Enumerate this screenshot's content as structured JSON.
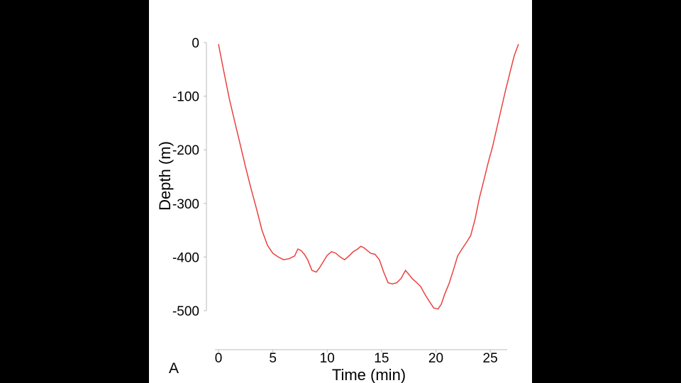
{
  "chart_data": {
    "type": "line",
    "title": "",
    "panel_label": "A",
    "xlabel": "Time (min)",
    "ylabel": "Depth (m)",
    "xlim": [
      0,
      27.8
    ],
    "ylim": [
      -500,
      0
    ],
    "xticks": [
      0,
      5,
      10,
      15,
      20,
      25
    ],
    "yticks": [
      0,
      -100,
      -200,
      -300,
      -400,
      -500
    ],
    "grid": false,
    "legend": "none",
    "line_color": "#e8423f",
    "series": [
      {
        "name": "",
        "x": [
          0,
          0.5,
          1,
          1.5,
          2,
          2.5,
          3,
          3.5,
          4,
          4.5,
          5,
          5.5,
          6,
          6.5,
          7,
          7.3,
          7.6,
          7.9,
          8.2,
          8.6,
          9,
          9.3,
          9.6,
          10,
          10.4,
          10.8,
          11.2,
          11.6,
          12,
          12.4,
          12.8,
          13.1,
          13.4,
          13.7,
          14,
          14.4,
          14.8,
          15.2,
          15.6,
          16,
          16.4,
          16.8,
          17.2,
          17.5,
          17.8,
          18.2,
          18.6,
          19,
          19.4,
          19.8,
          20.2,
          20.5,
          20.8,
          21.2,
          21.6,
          22,
          22.4,
          22.8,
          23.2,
          23.6,
          24,
          24.4,
          24.8,
          25.2,
          25.6,
          26,
          26.4,
          26.8,
          27.2,
          27.6
        ],
        "y": [
          -3,
          -55,
          -105,
          -148,
          -190,
          -233,
          -273,
          -310,
          -350,
          -378,
          -393,
          -400,
          -405,
          -403,
          -398,
          -385,
          -388,
          -395,
          -405,
          -425,
          -428,
          -420,
          -410,
          -397,
          -390,
          -393,
          -400,
          -405,
          -398,
          -390,
          -385,
          -380,
          -383,
          -388,
          -393,
          -395,
          -405,
          -428,
          -448,
          -450,
          -448,
          -440,
          -425,
          -432,
          -440,
          -447,
          -455,
          -470,
          -483,
          -495,
          -497,
          -488,
          -470,
          -450,
          -425,
          -398,
          -385,
          -373,
          -360,
          -330,
          -290,
          -258,
          -225,
          -195,
          -160,
          -125,
          -90,
          -57,
          -25,
          -3
        ]
      }
    ]
  }
}
